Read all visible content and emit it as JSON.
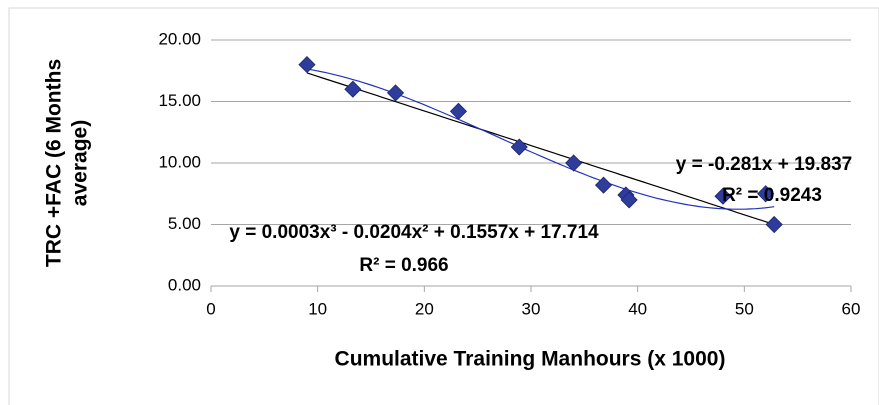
{
  "chart_data": {
    "type": "scatter",
    "xlabel": "Cumulative Training Manhours (x 1000)",
    "ylabel": [
      "TRC +FAC (6 Months",
      "average)"
    ],
    "x": [
      9,
      13.3,
      17.3,
      23.2,
      28.9,
      34,
      36.8,
      38.9,
      39.2,
      48,
      52,
      52.8
    ],
    "values": [
      18.0,
      16.0,
      15.7,
      14.2,
      11.3,
      10.0,
      8.2,
      7.4,
      7.0,
      7.3,
      7.5,
      5.0
    ],
    "color": "#2e3d9c",
    "xlim": [
      0,
      60
    ],
    "xticks": [
      0,
      10,
      20,
      30,
      40,
      50,
      60
    ],
    "ylim": [
      0,
      20
    ],
    "yticks": [
      {
        "value": 0,
        "label": "0.00"
      },
      {
        "value": 5,
        "label": "5.00"
      },
      {
        "value": 10,
        "label": "10.00"
      },
      {
        "value": 15,
        "label": "15.00"
      },
      {
        "value": 20,
        "label": "20.00"
      }
    ],
    "grid": true,
    "trendlines": [
      {
        "degree": 1,
        "color": "#000000",
        "equation": "y = -0.281x + 19.837",
        "r2": "R² = 0.9243"
      },
      {
        "degree": 3,
        "color": "#2233bb",
        "equation": "y = 0.0003x³ - 0.0204x² + 0.1557x + 17.714",
        "r2": "R² = 0.966"
      }
    ]
  }
}
